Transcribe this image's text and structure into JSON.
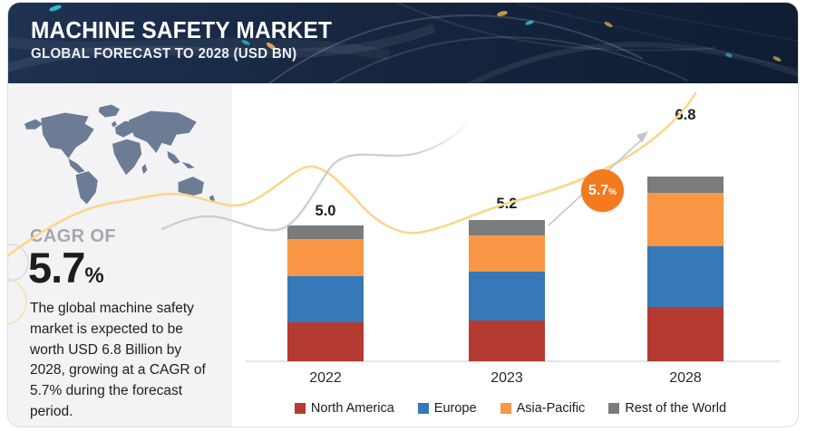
{
  "header": {
    "title": "MACHINE SAFETY MARKET",
    "subtitle": "GLOBAL FORECAST TO 2028 (USD BN)"
  },
  "sidebar": {
    "cagr_label": "CAGR OF",
    "cagr_value": "5.7",
    "cagr_percent_sign": "%",
    "description": "The global machine safety market is expected to be worth USD 6.8 Billion by 2028, growing at a CAGR of 5.7% during the forecast period."
  },
  "cagr_badge": {
    "value": "5.7",
    "percent": "%",
    "color": "#f47a1f"
  },
  "chart_data": {
    "type": "bar",
    "stacked": true,
    "title": "Machine Safety Market, Global Forecast to 2028 (USD BN)",
    "categories": [
      "2022",
      "2023",
      "2028"
    ],
    "series": [
      {
        "name": "North America",
        "color": "#b53a32",
        "values": [
          1.45,
          1.5,
          2.0
        ]
      },
      {
        "name": "Europe",
        "color": "#3779b8",
        "values": [
          1.7,
          1.8,
          2.25
        ]
      },
      {
        "name": "Asia-Pacific",
        "color": "#f99746",
        "values": [
          1.35,
          1.35,
          1.95
        ]
      },
      {
        "name": "Rest of the World",
        "color": "#7b7b7b",
        "values": [
          0.5,
          0.55,
          0.6
        ]
      }
    ],
    "totals": [
      "5.0",
      "5.2",
      "6.8"
    ],
    "unit": "USD BN",
    "ylim": [
      0,
      7
    ],
    "grid": false,
    "legend_position": "bottom"
  },
  "colors": {
    "header_bg": "#16263f",
    "sidebar_bg": "#f3f3f5",
    "accent_orange": "#f47a1f",
    "curve_yellow": "#fbd78a",
    "curve_gray": "#cdd0d5"
  }
}
